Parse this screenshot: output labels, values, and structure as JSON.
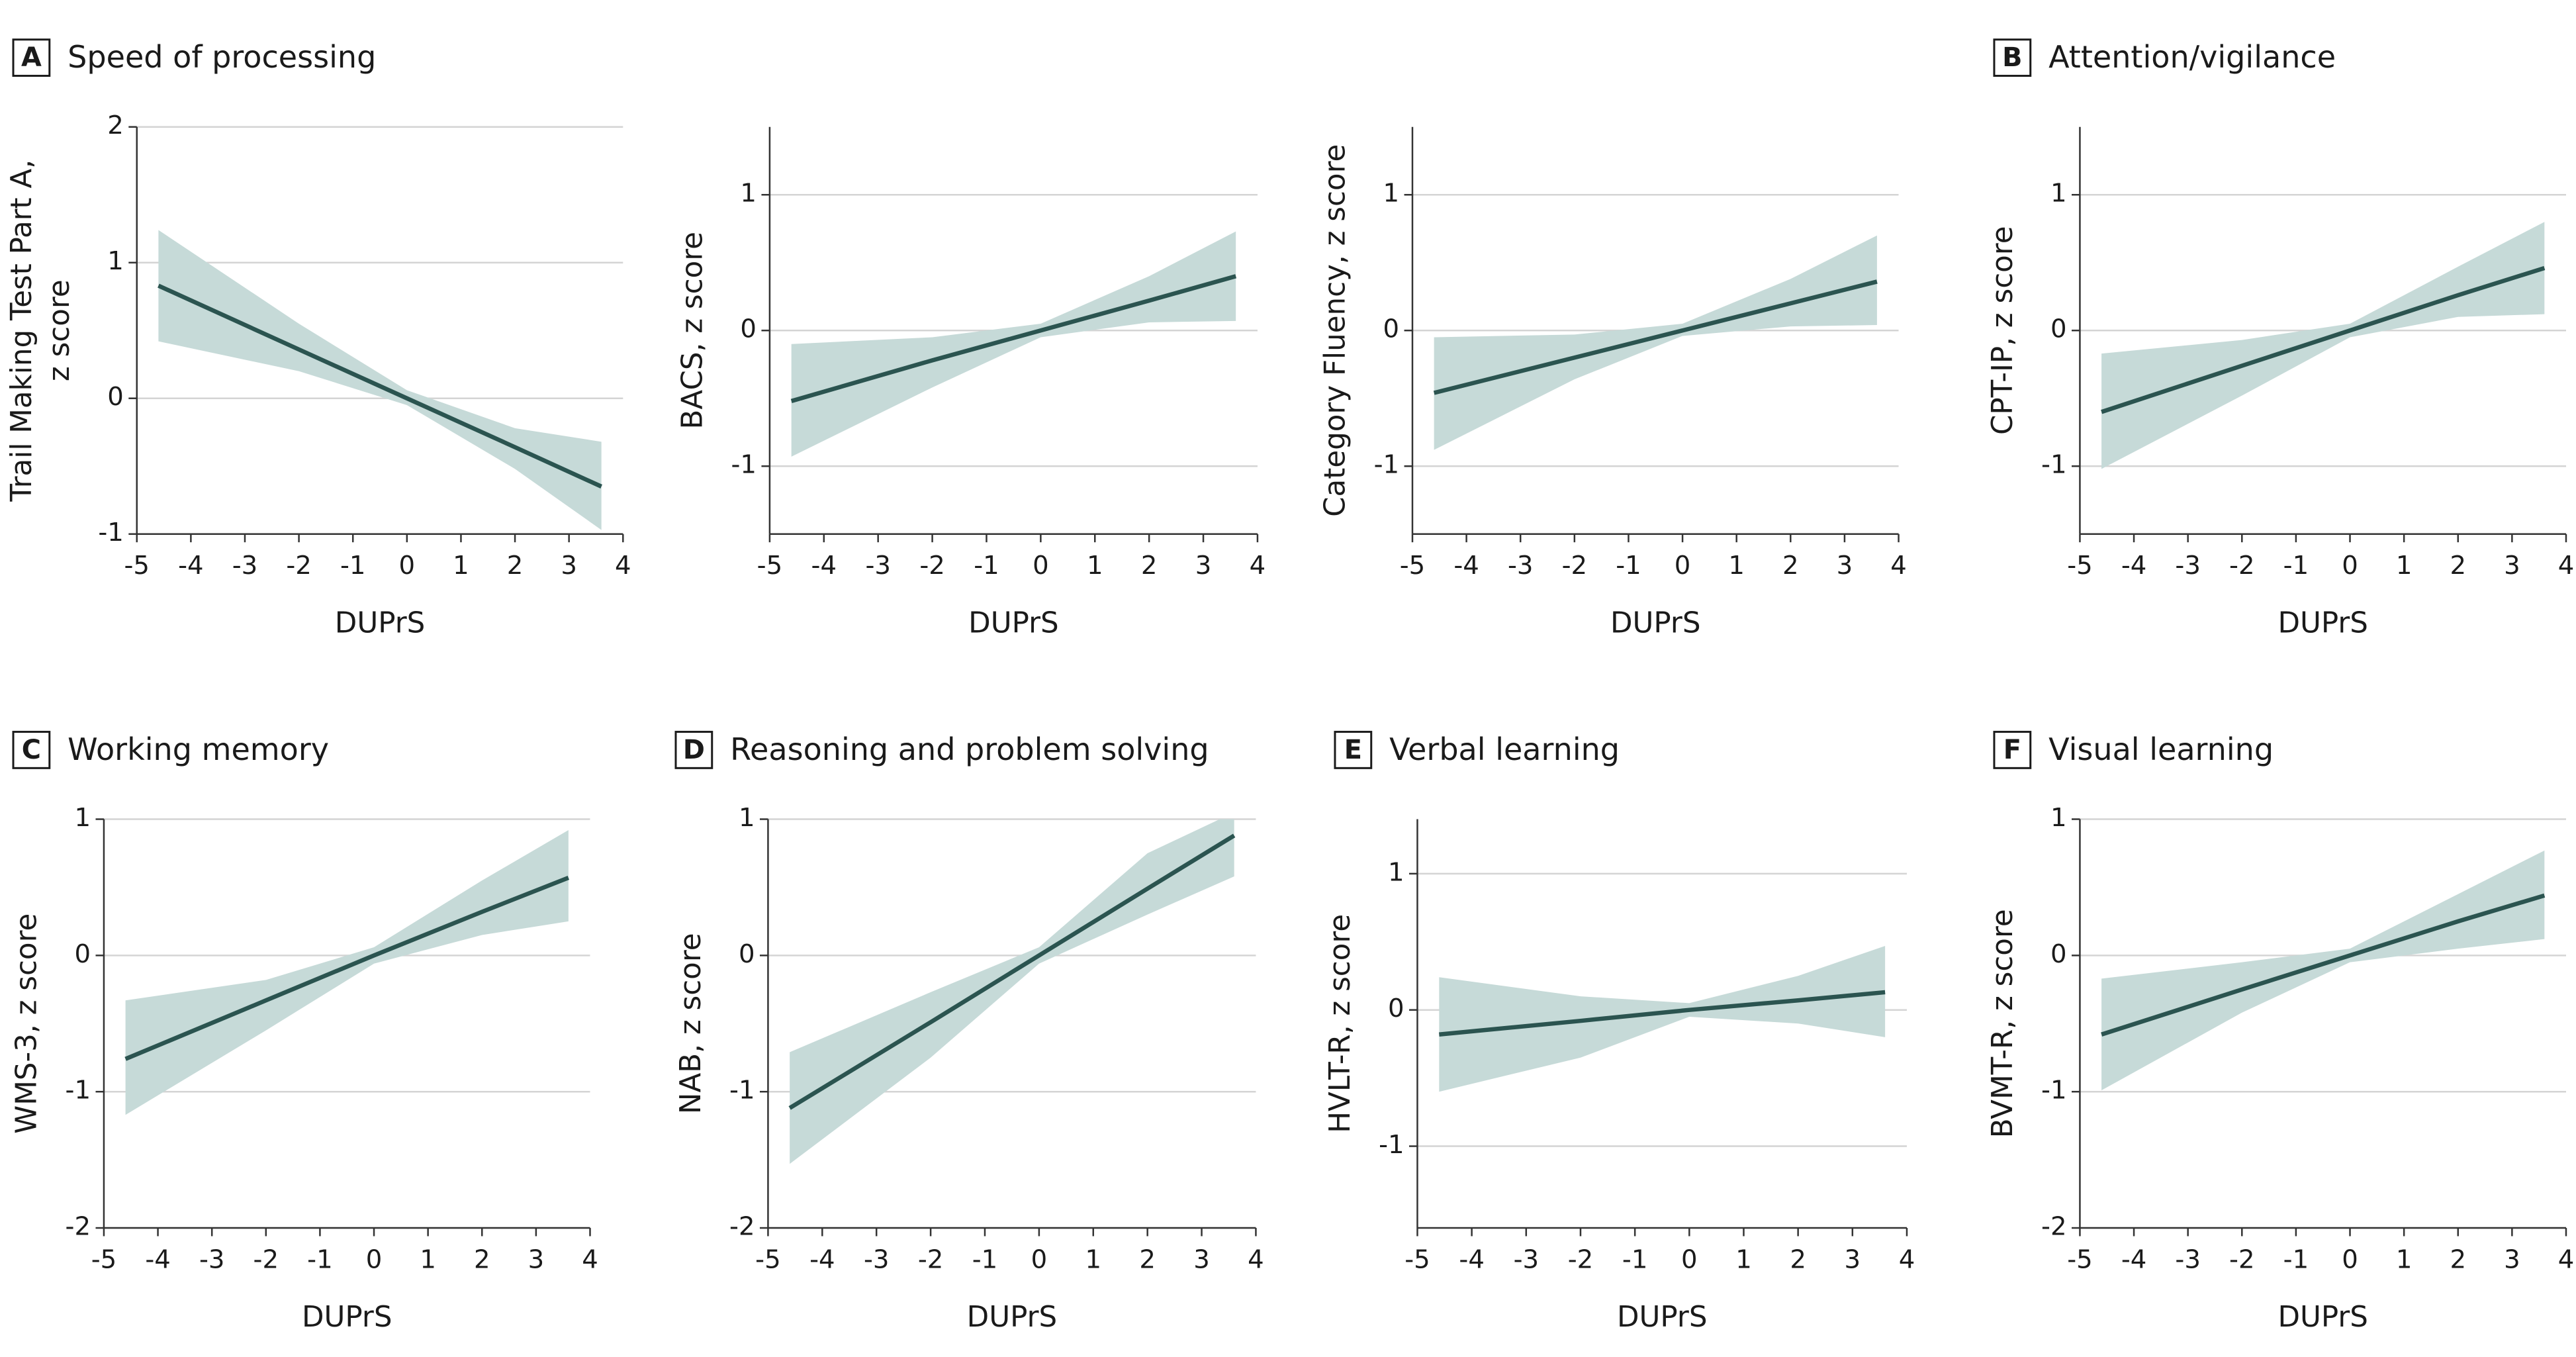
{
  "chart_data": [
    {
      "type": "line",
      "panel_label": "A",
      "title": "Speed of processing",
      "ylabel": [
        "Trail Making Test Part A,",
        "z score"
      ],
      "xlabel": "DUPrS",
      "x": [
        -4.6,
        -2,
        0,
        2,
        3.6
      ],
      "values": [
        0.83,
        0.36,
        0,
        -0.36,
        -0.65
      ],
      "lower": [
        0.42,
        0.2,
        -0.05,
        -0.52,
        -0.97
      ],
      "upper": [
        1.24,
        0.55,
        0.06,
        -0.22,
        -0.32
      ],
      "xlim": [
        -5,
        4
      ],
      "ylim": [
        -1,
        2
      ],
      "xticks": [
        -5,
        -4,
        -3,
        -2,
        -1,
        0,
        1,
        2,
        3,
        4
      ],
      "yticks": [
        -1,
        0,
        1,
        2
      ],
      "grid": true,
      "color": "#2b5450",
      "band_color": "#c6dad8"
    },
    {
      "type": "line",
      "ylabel": [
        "BACS, z score"
      ],
      "xlabel": "DUPrS",
      "x": [
        -4.6,
        -2,
        0,
        2,
        3.6
      ],
      "values": [
        -0.52,
        -0.22,
        0,
        0.22,
        0.4
      ],
      "lower": [
        -0.93,
        -0.42,
        -0.05,
        0.06,
        0.07
      ],
      "upper": [
        -0.1,
        -0.05,
        0.05,
        0.4,
        0.73
      ],
      "xlim": [
        -5,
        4
      ],
      "ylim": [
        -1.5,
        1.5
      ],
      "xticks": [
        -5,
        -4,
        -3,
        -2,
        -1,
        0,
        1,
        2,
        3,
        4
      ],
      "yticks": [
        -1,
        0,
        1
      ],
      "grid": true,
      "color": "#2b5450",
      "band_color": "#c6dad8"
    },
    {
      "type": "line",
      "ylabel": [
        "Category Fluency, z score"
      ],
      "xlabel": "DUPrS",
      "x": [
        -4.6,
        -2,
        0,
        2,
        3.6
      ],
      "values": [
        -0.46,
        -0.2,
        0,
        0.2,
        0.36
      ],
      "lower": [
        -0.88,
        -0.36,
        -0.04,
        0.03,
        0.04
      ],
      "upper": [
        -0.05,
        -0.03,
        0.05,
        0.38,
        0.7
      ],
      "xlim": [
        -5,
        4
      ],
      "ylim": [
        -1.5,
        1.5
      ],
      "xticks": [
        -5,
        -4,
        -3,
        -2,
        -1,
        0,
        1,
        2,
        3,
        4
      ],
      "yticks": [
        -1,
        0,
        1
      ],
      "grid": true,
      "color": "#2b5450",
      "band_color": "#c6dad8"
    },
    {
      "type": "line",
      "panel_label": "B",
      "title": "Attention/vigilance",
      "ylabel": [
        "CPT-IP, z score"
      ],
      "xlabel": "DUPrS",
      "x": [
        -4.6,
        -2,
        0,
        2,
        3.6
      ],
      "values": [
        -0.6,
        -0.26,
        0,
        0.26,
        0.46
      ],
      "lower": [
        -1.02,
        -0.48,
        -0.05,
        0.1,
        0.12
      ],
      "upper": [
        -0.17,
        -0.07,
        0.05,
        0.47,
        0.8
      ],
      "xlim": [
        -5,
        4
      ],
      "ylim": [
        -1.5,
        1.5
      ],
      "xticks": [
        -5,
        -4,
        -3,
        -2,
        -1,
        0,
        1,
        2,
        3,
        4
      ],
      "yticks": [
        -1,
        0,
        1
      ],
      "grid": true,
      "color": "#2b5450",
      "band_color": "#c6dad8"
    },
    {
      "type": "line",
      "panel_label": "C",
      "title": "Working memory",
      "ylabel": [
        "WMS-3, z score"
      ],
      "xlabel": "DUPrS",
      "x": [
        -4.6,
        -2,
        0,
        2,
        3.6
      ],
      "values": [
        -0.76,
        -0.33,
        0,
        0.32,
        0.57
      ],
      "lower": [
        -1.17,
        -0.55,
        -0.06,
        0.15,
        0.25
      ],
      "upper": [
        -0.33,
        -0.18,
        0.06,
        0.55,
        0.92
      ],
      "xlim": [
        -5,
        4
      ],
      "ylim": [
        -2,
        1
      ],
      "xticks": [
        -5,
        -4,
        -3,
        -2,
        -1,
        0,
        1,
        2,
        3,
        4
      ],
      "yticks": [
        -2,
        -1,
        0,
        1
      ],
      "grid": true,
      "color": "#2b5450",
      "band_color": "#c6dad8"
    },
    {
      "type": "line",
      "panel_label": "D",
      "title": "Reasoning and problem solving",
      "ylabel": [
        "NAB, z score"
      ],
      "xlabel": "DUPrS",
      "x": [
        -4.6,
        -2,
        0,
        2,
        3.6
      ],
      "values": [
        -1.12,
        -0.49,
        0,
        0.49,
        0.88
      ],
      "lower": [
        -1.53,
        -0.75,
        -0.06,
        0.3,
        0.58
      ],
      "upper": [
        -0.71,
        -0.27,
        0.06,
        0.75,
        1.05
      ],
      "xlim": [
        -5,
        4
      ],
      "ylim": [
        -2,
        1
      ],
      "xticks": [
        -5,
        -4,
        -3,
        -2,
        -1,
        0,
        1,
        2,
        3,
        4
      ],
      "yticks": [
        -2,
        -1,
        0,
        1
      ],
      "grid": true,
      "color": "#2b5450",
      "band_color": "#c6dad8"
    },
    {
      "type": "line",
      "panel_label": "E",
      "title": "Verbal learning",
      "ylabel": [
        "HVLT-R, z score"
      ],
      "xlabel": "DUPrS",
      "x": [
        -4.6,
        -2,
        0,
        2,
        3.6
      ],
      "values": [
        -0.18,
        -0.08,
        0,
        0.07,
        0.13
      ],
      "lower": [
        -0.6,
        -0.35,
        -0.05,
        -0.1,
        -0.2
      ],
      "upper": [
        0.24,
        0.1,
        0.05,
        0.25,
        0.47
      ],
      "xlim": [
        -5,
        4
      ],
      "ylim": [
        -1.6,
        1.4
      ],
      "xticks": [
        -5,
        -4,
        -3,
        -2,
        -1,
        0,
        1,
        2,
        3,
        4
      ],
      "yticks": [
        -1,
        0,
        1
      ],
      "grid": true,
      "color": "#2b5450",
      "band_color": "#c6dad8"
    },
    {
      "type": "line",
      "panel_label": "F",
      "title": "Visual learning",
      "ylabel": [
        "BVMT-R, z score"
      ],
      "xlabel": "DUPrS",
      "x": [
        -4.6,
        -2,
        0,
        2,
        3.6
      ],
      "values": [
        -0.58,
        -0.25,
        0,
        0.25,
        0.44
      ],
      "lower": [
        -0.99,
        -0.42,
        -0.05,
        0.05,
        0.12
      ],
      "upper": [
        -0.17,
        -0.05,
        0.05,
        0.45,
        0.77
      ],
      "xlim": [
        -5,
        4
      ],
      "ylim": [
        -2,
        1
      ],
      "xticks": [
        -5,
        -4,
        -3,
        -2,
        -1,
        0,
        1,
        2,
        3,
        4
      ],
      "yticks": [
        -2,
        -1,
        0,
        1
      ],
      "grid": true,
      "color": "#2b5450",
      "band_color": "#c6dad8"
    }
  ]
}
